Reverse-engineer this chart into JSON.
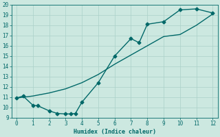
{
  "xlabel": "Humidex (Indice chaleur)",
  "background_color": "#cce8e0",
  "line_color": "#006868",
  "grid_color": "#aad0c8",
  "xlim": [
    -0.3,
    12.3
  ],
  "ylim": [
    9,
    20
  ],
  "xticks": [
    0,
    1,
    2,
    3,
    4,
    5,
    6,
    7,
    8,
    9,
    10,
    11,
    12
  ],
  "yticks": [
    9,
    10,
    11,
    12,
    13,
    14,
    15,
    16,
    17,
    18,
    19,
    20
  ],
  "line1_x": [
    0,
    0.4,
    1,
    1.3,
    2,
    2.5,
    3,
    3.3,
    3.6,
    4,
    5,
    6,
    7,
    7.5,
    8,
    9,
    10,
    11,
    12
  ],
  "line1_y": [
    10.9,
    11.1,
    10.2,
    10.15,
    9.65,
    9.4,
    9.35,
    9.35,
    9.4,
    10.5,
    12.4,
    15.0,
    16.7,
    16.3,
    18.1,
    18.35,
    19.5,
    19.6,
    19.2
  ],
  "line2_x": [
    0,
    1,
    2,
    3,
    4,
    5,
    6,
    7,
    8,
    9,
    10,
    11,
    12
  ],
  "line2_y": [
    10.9,
    11.1,
    11.4,
    11.8,
    12.4,
    13.2,
    14.2,
    15.1,
    16.0,
    16.9,
    17.1,
    18.0,
    19.1
  ],
  "marker": "D",
  "marker_size": 2.5,
  "line_width": 1.0
}
